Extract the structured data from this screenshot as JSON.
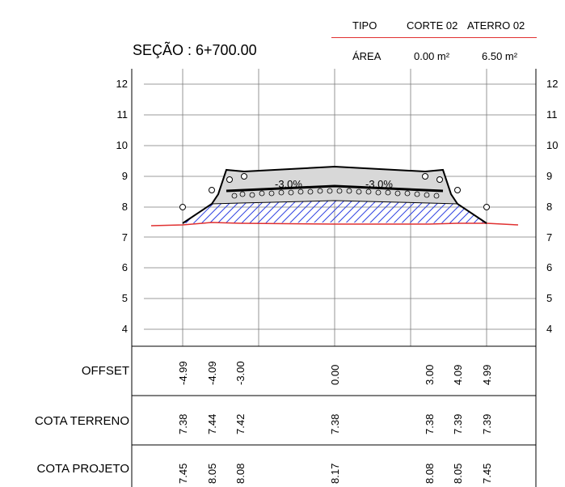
{
  "header": {
    "tipo_label": "TIPO",
    "corte_label": "CORTE 02",
    "aterro_label": "ATERRO 02",
    "area_label": "ÁREA",
    "corte_area": "0.00 m²",
    "aterro_area": "6.50 m²"
  },
  "section_title": "SEÇÃO : 6+700.00",
  "slopes": {
    "left": "-3.0%",
    "right": "-3.0%"
  },
  "chart_data": {
    "type": "cross-section",
    "y_ticks": [
      "12",
      "11",
      "10",
      "9",
      "8",
      "7",
      "6",
      "5",
      "4"
    ],
    "ylim": [
      3.5,
      12.3
    ],
    "terrain": [
      [
        -8,
        7.36
      ],
      [
        -4.99,
        7.38
      ],
      [
        -4.09,
        7.44
      ],
      [
        -3.0,
        7.42
      ],
      [
        0.0,
        7.38
      ],
      [
        3.0,
        7.38
      ],
      [
        4.09,
        7.39
      ],
      [
        4.99,
        7.39
      ],
      [
        10,
        7.37
      ]
    ],
    "project": [
      [
        -4.99,
        7.45
      ],
      [
        -4.09,
        8.05
      ],
      [
        -3.0,
        8.08
      ],
      [
        0.0,
        8.17
      ],
      [
        3.0,
        8.08
      ],
      [
        4.09,
        8.05
      ],
      [
        4.99,
        7.45
      ]
    ],
    "colors": {
      "terrain": "#e03030",
      "fill_hatch": "#2b3ee0",
      "grid": "#7a7a7a"
    }
  },
  "table": {
    "rows": [
      {
        "label": "OFFSET",
        "values": [
          "-4.99",
          "-4.09",
          "-3.00",
          "0.00",
          "3.00",
          "4.09",
          "4.99"
        ]
      },
      {
        "label": "COTA TERRENO",
        "values": [
          "7.38",
          "7.44",
          "7.42",
          "7.38",
          "7.38",
          "7.39",
          "7.39"
        ]
      },
      {
        "label": "COTA PROJETO",
        "values": [
          "7.45",
          "8.05",
          "8.08",
          "8.17",
          "8.08",
          "8.05",
          "7.45"
        ]
      }
    ]
  }
}
